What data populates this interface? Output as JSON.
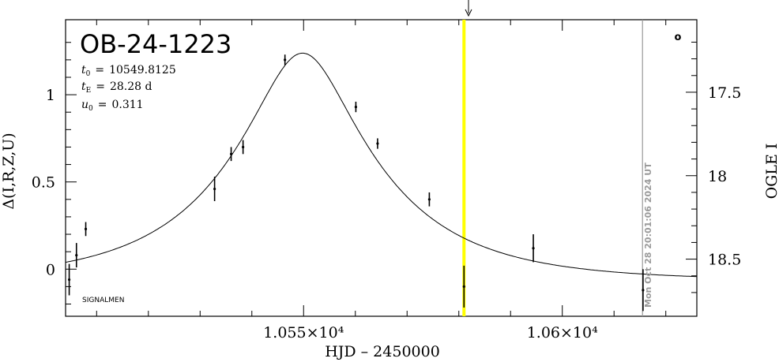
{
  "chart_data": {
    "type": "scatter",
    "title": "OB-24-1223",
    "xlabel": "HJD – 2450000",
    "ylabel": "Δ(I,R,Z,U)",
    "y2label": "OGLE I",
    "xlim": [
      10504,
      10626
    ],
    "ylim": [
      -0.27,
      1.43
    ],
    "x_ticks": [
      10550,
      10600
    ],
    "x_tick_labels": [
      "1.055×10⁴",
      "1.06×10⁴"
    ],
    "y_ticks": [
      0,
      0.5,
      1
    ],
    "y_tick_labels": [
      "0",
      "0.5",
      "1"
    ],
    "y2_ticks": [
      17.5,
      18,
      18.5
    ],
    "y2_tick_labels": [
      "17.5",
      "18",
      "18.5"
    ],
    "y2_relation": "I = 18.56 - 1.045 * delta",
    "params": {
      "t0": "10549.8125",
      "tE": "28.28 d",
      "u0": "0.311"
    },
    "param_symbols": {
      "t0": "t",
      "t0_sub": "0",
      "tE": "t",
      "tE_sub": "E",
      "u0": "u",
      "u0_sub": "0",
      "eq": "="
    },
    "model": {
      "type": "paczynski",
      "t0": 10549.8125,
      "tE": 28.28,
      "u0": 0.311,
      "baseline_offset": -0.068
    },
    "points": [
      {
        "x": 10504.7,
        "y": -0.06,
        "err": 0.09
      },
      {
        "x": 10506.1,
        "y": 0.08,
        "err": 0.07
      },
      {
        "x": 10507.9,
        "y": 0.23,
        "err": 0.04
      },
      {
        "x": 10532.8,
        "y": 0.46,
        "err": 0.07
      },
      {
        "x": 10536.0,
        "y": 0.66,
        "err": 0.04
      },
      {
        "x": 10538.3,
        "y": 0.7,
        "err": 0.04
      },
      {
        "x": 10546.4,
        "y": 1.2,
        "err": 0.03
      },
      {
        "x": 10560.1,
        "y": 0.93,
        "err": 0.03
      },
      {
        "x": 10564.3,
        "y": 0.72,
        "err": 0.03
      },
      {
        "x": 10574.3,
        "y": 0.4,
        "err": 0.04
      },
      {
        "x": 10581.0,
        "y": -0.1,
        "err": 0.12
      },
      {
        "x": 10594.4,
        "y": 0.12,
        "err": 0.08
      },
      {
        "x": 10615.6,
        "y": -0.12,
        "err": 0.12
      }
    ],
    "current_time_x": 10581.0,
    "current_time_color": "#ffff00",
    "now_line_x": 10615.5,
    "now_line_color": "#9a9a9a",
    "annotations": {
      "timestamp": "Mon Oct 28 20:01:06 2024 UT",
      "signature": "SIGNALMEN",
      "symbol": "o"
    }
  }
}
